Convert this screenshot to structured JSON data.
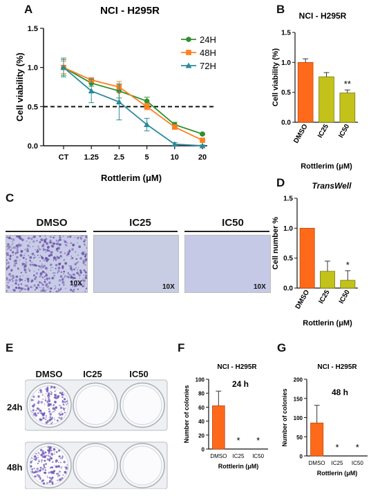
{
  "colors": {
    "s24": "#2f8f2f",
    "s48": "#ff7f1f",
    "s72": "#2a8a9a",
    "bar_orange": "#ff6a1a",
    "bar_olive": "#c2c21a",
    "bar_edge": "#7a7a10",
    "stain_dense": "#6a52a8",
    "stain_light": "#c8cce6"
  },
  "panels": {
    "A": {
      "letter": "A"
    },
    "B": {
      "letter": "B"
    },
    "C": {
      "letter": "C"
    },
    "D": {
      "letter": "D"
    },
    "E": {
      "letter": "E"
    },
    "F": {
      "letter": "F"
    },
    "G": {
      "letter": "G"
    }
  },
  "panel_c": {
    "images": [
      {
        "title": "DMSO",
        "magnification": "10X"
      },
      {
        "title": "IC25",
        "magnification": "10X"
      },
      {
        "title": "IC50",
        "magnification": "10X"
      }
    ]
  },
  "panel_e": {
    "columns": [
      "DMSO",
      "IC25",
      "IC50"
    ],
    "rows": [
      "24h",
      "48h"
    ]
  },
  "chart_data": [
    {
      "id": "A",
      "type": "line",
      "title": "NCI - H295R",
      "xlabel": "Rottlerim (μM)",
      "ylabel": "Cell viability (%)",
      "categories": [
        "CT",
        "1.25",
        "2.5",
        "5",
        "10",
        "20"
      ],
      "ylim": [
        0,
        1.5
      ],
      "yticks": [
        "0.0",
        "0.5",
        "1.0",
        "1.5"
      ],
      "reference_line": 0.5,
      "legend_position": "top-right",
      "series": [
        {
          "name": "24H",
          "color_key": "s24",
          "marker": "circle",
          "values": [
            1.0,
            0.8,
            0.7,
            0.57,
            0.27,
            0.15
          ],
          "errors": [
            0.1,
            0.04,
            0.09,
            0.05,
            0.03,
            0.01
          ]
        },
        {
          "name": "48H",
          "color_key": "s48",
          "marker": "square",
          "values": [
            1.0,
            0.84,
            0.75,
            0.5,
            0.24,
            0.07
          ],
          "errors": [
            0.08,
            0.03,
            0.07,
            0.04,
            0.03,
            0.01
          ]
        },
        {
          "name": "72H",
          "color_key": "s72",
          "marker": "triangle",
          "values": [
            1.0,
            0.7,
            0.56,
            0.27,
            0.02,
            0.0
          ],
          "errors": [
            0.12,
            0.15,
            0.23,
            0.08,
            0.02,
            0.01
          ]
        }
      ]
    },
    {
      "id": "B",
      "type": "bar",
      "title": "NCI - H295R",
      "xlabel": "Rottlerim (μM)",
      "ylabel": "Cell viability (%)",
      "categories": [
        "DMSO",
        "IC25",
        "IC50"
      ],
      "values": [
        1.0,
        0.76,
        0.49
      ],
      "errors": [
        0.06,
        0.07,
        0.05
      ],
      "colors": [
        "bar_orange",
        "bar_olive",
        "bar_olive"
      ],
      "annotations": [
        "",
        "",
        "**"
      ],
      "ylim": [
        0,
        1.5
      ],
      "yticks": [
        "0.0",
        "0.5",
        "1.0",
        "1.5"
      ]
    },
    {
      "id": "D",
      "type": "bar",
      "title": "TransWell",
      "xlabel": "Rottlerin (μM)",
      "ylabel": "Cell number %",
      "categories": [
        "DMSO",
        "IC25",
        "IC50"
      ],
      "values": [
        1.0,
        0.28,
        0.13
      ],
      "errors": [
        0.0,
        0.17,
        0.16
      ],
      "colors": [
        "bar_orange",
        "bar_olive",
        "bar_olive"
      ],
      "annotations": [
        "",
        "",
        "*"
      ],
      "ylim": [
        0,
        1.5
      ],
      "yticks": [
        "0.0",
        "0.5",
        "1.0",
        "1.5"
      ]
    },
    {
      "id": "F",
      "type": "bar",
      "title": "NCI - H295R",
      "inset_label": "24 h",
      "xlabel": "Rottlerin (μM)",
      "ylabel": "Number of colonies",
      "categories": [
        "DMSO",
        "IC25",
        "IC50"
      ],
      "values": [
        62,
        0,
        0
      ],
      "errors": [
        21,
        0,
        0
      ],
      "colors": [
        "bar_orange",
        "bar_orange",
        "bar_orange"
      ],
      "annotations": [
        "",
        "*",
        "*"
      ],
      "ylim": [
        0,
        100
      ],
      "yticks": [
        "0",
        "20",
        "40",
        "60",
        "80",
        "100"
      ]
    },
    {
      "id": "G",
      "type": "bar",
      "title": "NCI - H295R",
      "inset_label": "48 h",
      "xlabel": "Rottlerin (μM)",
      "ylabel": "Number of colonies",
      "categories": [
        "DMSO",
        "IC25",
        "IC50"
      ],
      "values": [
        86,
        0,
        0
      ],
      "errors": [
        46,
        0,
        0
      ],
      "colors": [
        "bar_orange",
        "bar_orange",
        "bar_orange"
      ],
      "annotations": [
        "",
        "*",
        "*"
      ],
      "ylim": [
        0,
        200
      ],
      "yticks": [
        "0",
        "50",
        "100",
        "150",
        "200"
      ]
    }
  ]
}
